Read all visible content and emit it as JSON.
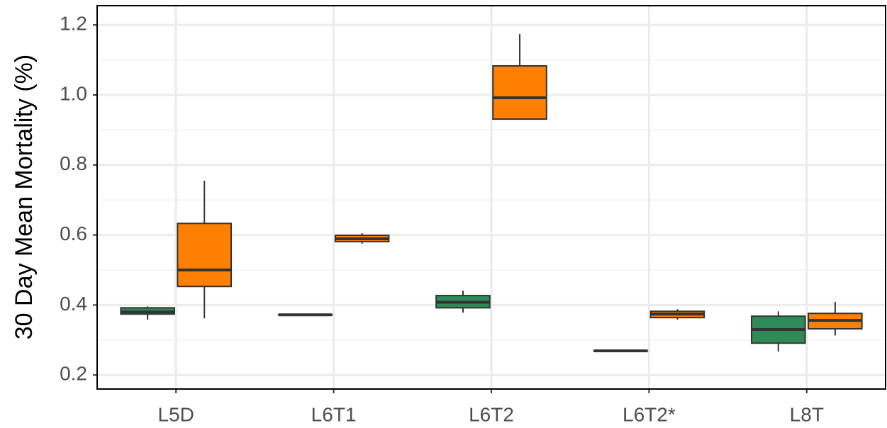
{
  "chart_data": {
    "type": "box",
    "y_label": "30 Day Mean Mortality (%)",
    "categories": [
      "L5D",
      "L6T1",
      "L6T2",
      "L6T2*",
      "L8T"
    ],
    "ylim": [
      0.16,
      1.255
    ],
    "yticks": [
      0.2,
      0.4,
      0.6,
      0.8,
      {
        "value": 1,
        "label": "1.0"
      },
      1.2
    ],
    "grid": true,
    "series": [
      {
        "color": "#2e8b57",
        "boxes": [
          {
            "min": 0.358,
            "q1": 0.374,
            "median": 0.38,
            "q3": 0.392,
            "max": 0.396
          },
          {
            "min": 0.372,
            "q1": 0.372,
            "median": 0.372,
            "q3": 0.372,
            "max": 0.372
          },
          {
            "min": 0.378,
            "q1": 0.392,
            "median": 0.408,
            "q3": 0.427,
            "max": 0.441
          },
          {
            "min": 0.269,
            "q1": 0.269,
            "median": 0.269,
            "q3": 0.269,
            "max": 0.269
          },
          {
            "min": 0.267,
            "q1": 0.291,
            "median": 0.33,
            "q3": 0.368,
            "max": 0.382
          }
        ]
      },
      {
        "color": "#ff7f00",
        "boxes": [
          {
            "min": 0.362,
            "q1": 0.453,
            "median": 0.5,
            "q3": 0.633,
            "max": 0.755
          },
          {
            "min": 0.575,
            "q1": 0.581,
            "median": 0.589,
            "q3": 0.599,
            "max": 0.605
          },
          {
            "min": 0.931,
            "q1": 0.931,
            "median": 0.992,
            "q3": 1.083,
            "max": 1.174
          },
          {
            "min": 0.358,
            "q1": 0.364,
            "median": 0.374,
            "q3": 0.382,
            "max": 0.388
          },
          {
            "min": 0.313,
            "q1": 0.332,
            "median": 0.356,
            "q3": 0.376,
            "max": 0.409
          }
        ]
      }
    ]
  }
}
